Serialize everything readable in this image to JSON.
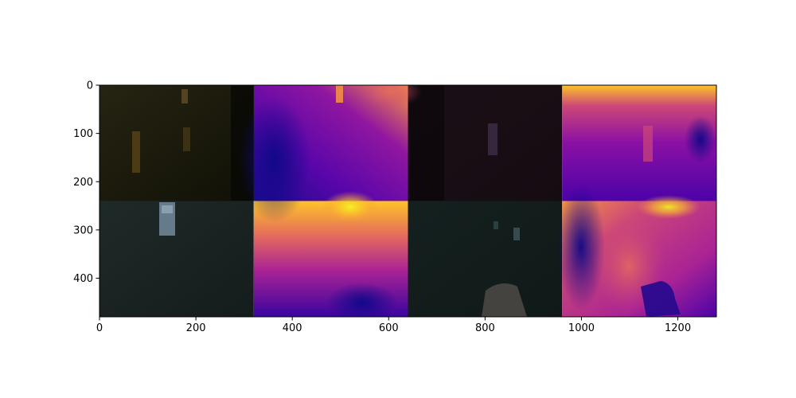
{
  "chart_data": {
    "type": "heatmap",
    "title": "",
    "xlabel": "",
    "ylabel": "",
    "xlim": [
      0,
      1280
    ],
    "ylim": [
      480,
      0
    ],
    "y_inverted": true,
    "x_ticks": [
      0,
      200,
      400,
      600,
      800,
      1000,
      1200
    ],
    "y_ticks": [
      0,
      100,
      200,
      300,
      400
    ],
    "grid": false,
    "grid_layout": {
      "rows": 2,
      "cols": 4,
      "tile_width": 320,
      "tile_height": 240
    },
    "tiles": [
      {
        "row": 0,
        "col": 0,
        "kind": "rgb",
        "colors": [
          "#101006",
          "#262412",
          "#4a3a18"
        ]
      },
      {
        "row": 0,
        "col": 1,
        "kind": "depth",
        "colormap": "plasma"
      },
      {
        "row": 0,
        "col": 2,
        "kind": "rgb",
        "colors": [
          "#0e080c",
          "#1e121a",
          "#35243a"
        ]
      },
      {
        "row": 0,
        "col": 3,
        "kind": "depth",
        "colormap": "plasma"
      },
      {
        "row": 1,
        "col": 0,
        "kind": "rgb",
        "colors": [
          "#101616",
          "#1f2a28",
          "#3a4a4a"
        ]
      },
      {
        "row": 1,
        "col": 1,
        "kind": "depth",
        "colormap": "plasma"
      },
      {
        "row": 1,
        "col": 2,
        "kind": "rgb",
        "colors": [
          "#0c1416",
          "#182628",
          "#2e4042"
        ]
      },
      {
        "row": 1,
        "col": 3,
        "kind": "depth",
        "colormap": "plasma"
      }
    ],
    "colormap_plasma": [
      "#0d0887",
      "#4c02a8",
      "#7e03a8",
      "#a92395",
      "#cc4778",
      "#e56b5d",
      "#f89441",
      "#fdc328",
      "#f0f921"
    ]
  }
}
